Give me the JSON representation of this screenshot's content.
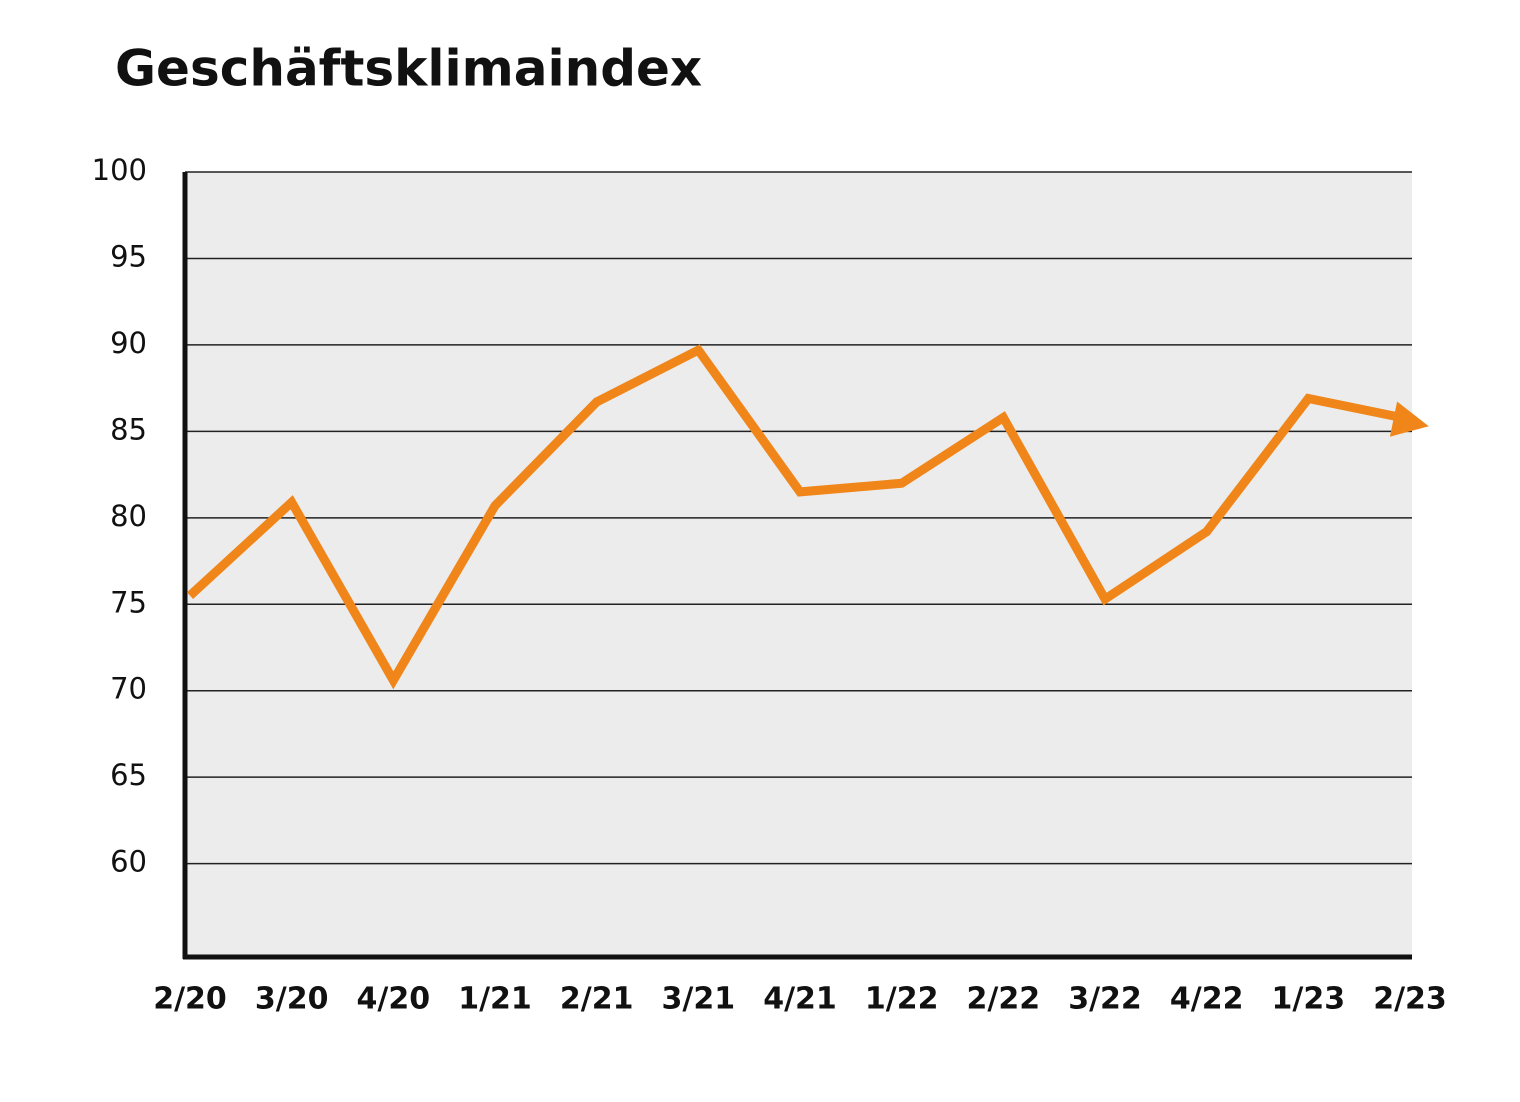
{
  "chart_data": {
    "type": "line",
    "title": "Geschäftsklimaindex",
    "categories": [
      "2/20",
      "3/20",
      "4/20",
      "1/21",
      "2/21",
      "3/21",
      "4/21",
      "1/22",
      "2/22",
      "3/22",
      "4/22",
      "1/23",
      "2/23"
    ],
    "series": [
      {
        "color": "#f0861a",
        "values": [
          75.5,
          80.9,
          70.6,
          80.7,
          86.7,
          89.7,
          81.5,
          82.0,
          85.8,
          75.3,
          79.2,
          86.9,
          85.7
        ]
      }
    ],
    "ylim": [
      54.6,
      100
    ],
    "yticks": [
      60,
      65,
      70,
      75,
      80,
      85,
      90,
      95,
      100
    ],
    "grid": true
  }
}
